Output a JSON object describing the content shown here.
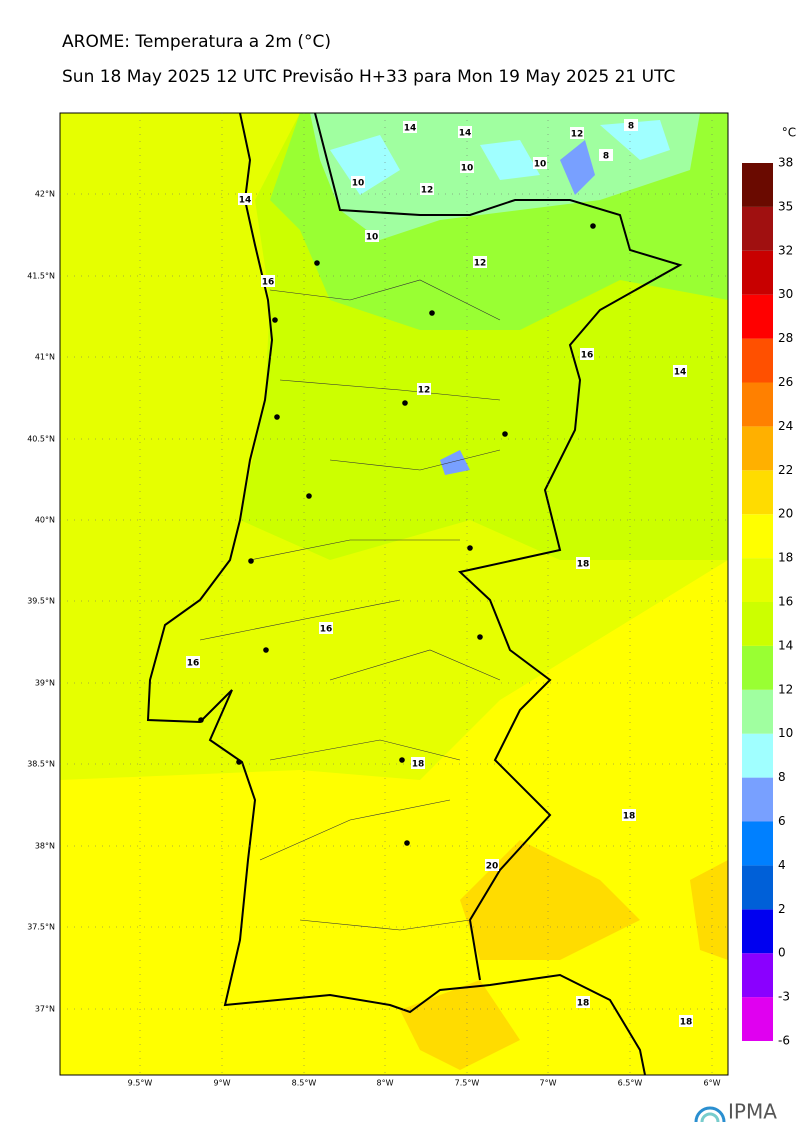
{
  "header": {
    "title": "AROME: Temperatura a 2m (°C)",
    "subtitle": "Sun 18 May 2025 12 UTC Previsão H+33 para Mon 19 May 2025 21 UTC"
  },
  "map": {
    "lat_labels": [
      "42°N",
      "41.5°N",
      "41°N",
      "40.5°N",
      "40°N",
      "39.5°N",
      "39°N",
      "38.5°N",
      "38°N",
      "37.5°N",
      "37°N"
    ],
    "lon_labels": [
      "9.5°W",
      "9°W",
      "8.5°W",
      "8°W",
      "7.5°W",
      "7°W",
      "6.5°W",
      "6°W"
    ],
    "contour_labels": [
      14,
      14,
      12,
      8,
      10,
      12,
      10,
      10,
      8,
      14,
      10,
      12,
      16,
      16,
      14,
      12,
      18,
      16,
      16,
      18,
      18,
      20,
      18,
      18
    ]
  },
  "colorbar": {
    "unit": "°C",
    "ticks": [
      -6,
      -3,
      0,
      2,
      4,
      6,
      8,
      10,
      12,
      14,
      16,
      18,
      20,
      22,
      24,
      26,
      28,
      30,
      32,
      35,
      38
    ],
    "colors": [
      "#e000f0",
      "#8a00ff",
      "#0000f0",
      "#0060d8",
      "#0080ff",
      "#78a0ff",
      "#a0ffff",
      "#a0ffa0",
      "#99ff33",
      "#ccff00",
      "#e6ff00",
      "#ffff00",
      "#ffdc00",
      "#ffb000",
      "#ff8000",
      "#ff5000",
      "#ff0000",
      "#c80000",
      "#a01010",
      "#6a0a00"
    ]
  },
  "logo": {
    "text": "IPMA"
  }
}
